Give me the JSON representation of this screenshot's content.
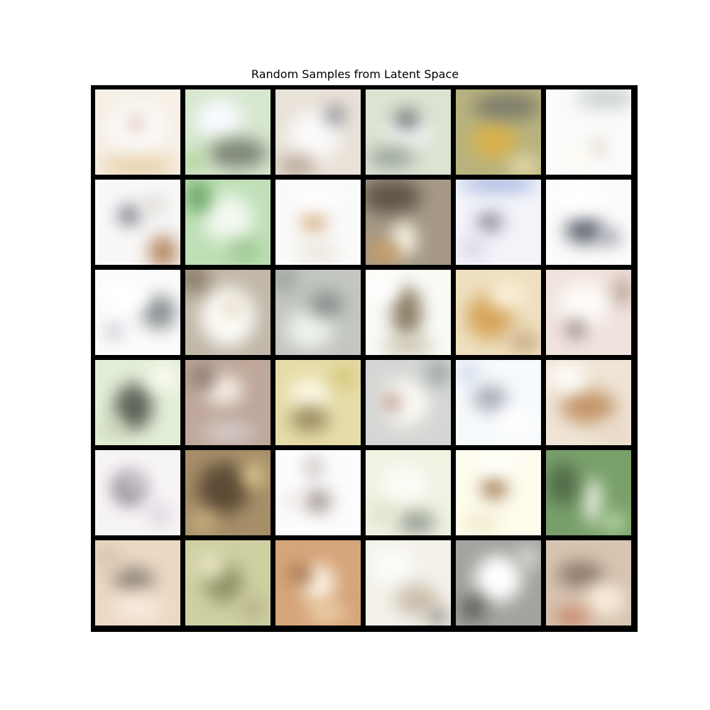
{
  "figure": {
    "title": "Random Samples from Latent Space"
  },
  "grid": {
    "rows": 6,
    "cols": 6,
    "tiles": [
      {
        "bg": "#f6f0e6",
        "blobs": [
          [
            "#fbfbfb",
            50,
            45,
            65,
            60
          ],
          [
            "#c98a62",
            48,
            40,
            10,
            18
          ],
          [
            "#e8cfa7",
            50,
            90,
            90,
            22
          ]
        ]
      },
      {
        "bg": "#d7e7cf",
        "blobs": [
          [
            "#f8fbff",
            40,
            35,
            55,
            45
          ],
          [
            "#7e8676",
            62,
            75,
            70,
            35
          ],
          [
            "#a9d38f",
            10,
            85,
            25,
            25
          ]
        ]
      },
      {
        "bg": "#e9e2d8",
        "blobs": [
          [
            "#fafafa",
            45,
            55,
            60,
            60
          ],
          [
            "#7c7f85",
            70,
            30,
            22,
            22
          ],
          [
            "#b9a899",
            25,
            90,
            45,
            25
          ]
        ]
      },
      {
        "bg": "#dce3d2",
        "blobs": [
          [
            "#f7f9fb",
            50,
            50,
            55,
            30
          ],
          [
            "#6e7171",
            48,
            35,
            30,
            24
          ],
          [
            "#9aa59b",
            30,
            80,
            55,
            25
          ]
        ]
      },
      {
        "bg": "#b8b37f",
        "blobs": [
          [
            "#d8b14e",
            45,
            60,
            55,
            45
          ],
          [
            "#7c7b6a",
            60,
            20,
            80,
            30
          ],
          [
            "#e2d9a8",
            80,
            90,
            40,
            25
          ]
        ]
      },
      {
        "bg": "#fbfbfb",
        "blobs": [
          [
            "#c9d2cd",
            70,
            10,
            70,
            25
          ],
          [
            "#b48c5c",
            62,
            68,
            8,
            16
          ],
          [
            "#fffde9",
            35,
            80,
            25,
            18
          ]
        ]
      },
      {
        "bg": "#f8f8f8",
        "blobs": [
          [
            "#6b6e7a",
            40,
            42,
            25,
            22
          ],
          [
            "#b68c67",
            80,
            85,
            35,
            40
          ],
          [
            "#d8d2cb",
            70,
            30,
            25,
            20
          ]
        ]
      },
      {
        "bg": "#bfe0b7",
        "blobs": [
          [
            "#f2f8ef",
            50,
            45,
            60,
            55
          ],
          [
            "#6ca866",
            15,
            20,
            30,
            40
          ],
          [
            "#9cc592",
            70,
            85,
            40,
            25
          ]
        ]
      },
      {
        "bg": "#fafafa",
        "blobs": [
          [
            "#d8b186",
            45,
            50,
            30,
            25
          ],
          [
            "#fefefe",
            50,
            20,
            60,
            25
          ],
          [
            "#eae4d8",
            50,
            85,
            50,
            20
          ]
        ]
      },
      {
        "bg": "#a59986",
        "blobs": [
          [
            "#5f5549",
            30,
            20,
            70,
            40
          ],
          [
            "#fdf8e9",
            45,
            70,
            30,
            40
          ],
          [
            "#c99d64",
            20,
            85,
            40,
            25
          ]
        ]
      },
      {
        "bg": "#f3f4fa",
        "blobs": [
          [
            "#94a8d8",
            50,
            5,
            90,
            15
          ],
          [
            "#7a7784",
            40,
            50,
            30,
            20
          ],
          [
            "#d6d6e4",
            20,
            80,
            30,
            25
          ]
        ]
      },
      {
        "bg": "#fbfbfb",
        "blobs": [
          [
            "#5f6370",
            45,
            60,
            45,
            30
          ],
          [
            "#8e919a",
            75,
            68,
            25,
            18
          ],
          [
            "#ffffff",
            40,
            20,
            60,
            30
          ]
        ]
      },
      {
        "bg": "#fbfbfb",
        "blobs": [
          [
            "#8a8f91",
            75,
            50,
            40,
            40
          ],
          [
            "#9aa1b0",
            22,
            72,
            18,
            12
          ],
          [
            "#ffffff",
            35,
            30,
            55,
            35
          ]
        ]
      },
      {
        "bg": "#c2b8a9",
        "blobs": [
          [
            "#fbfbf6",
            50,
            55,
            65,
            70
          ],
          [
            "#8a7c67",
            10,
            10,
            35,
            35
          ],
          [
            "#c9a981",
            55,
            45,
            20,
            10
          ]
        ]
      },
      {
        "bg": "#c4c7c1",
        "blobs": [
          [
            "#eef1ec",
            40,
            70,
            55,
            45
          ],
          [
            "#8b8f8c",
            60,
            40,
            40,
            30
          ],
          [
            "#a3a8a3",
            10,
            10,
            35,
            35
          ]
        ]
      },
      {
        "bg": "#fafaf6",
        "blobs": [
          [
            "#8b7d63",
            48,
            50,
            35,
            60
          ],
          [
            "#c9c2ad",
            50,
            90,
            60,
            20
          ],
          [
            "#ffffff",
            20,
            20,
            35,
            35
          ]
        ]
      },
      {
        "bg": "#eee0bf",
        "blobs": [
          [
            "#d6a65e",
            40,
            55,
            55,
            55
          ],
          [
            "#fbf2dc",
            60,
            30,
            45,
            30
          ],
          [
            "#c8a882",
            80,
            85,
            35,
            25
          ]
        ]
      },
      {
        "bg": "#f0e3dd",
        "blobs": [
          [
            "#fdfbf8",
            45,
            40,
            60,
            50
          ],
          [
            "#7e6a62",
            35,
            70,
            20,
            20
          ],
          [
            "#b49e90",
            90,
            25,
            20,
            35
          ]
        ]
      },
      {
        "bg": "#e3eed8",
        "blobs": [
          [
            "#5f6459",
            45,
            55,
            45,
            55
          ],
          [
            "#fbfbf2",
            80,
            20,
            35,
            30
          ],
          [
            "#c9d3b3",
            20,
            80,
            25,
            25
          ]
        ]
      },
      {
        "bg": "#bfa89b",
        "blobs": [
          [
            "#f6efe6",
            45,
            35,
            45,
            35
          ],
          [
            "#8d7b73",
            20,
            20,
            30,
            30
          ],
          [
            "#d4cbc8",
            50,
            85,
            60,
            25
          ]
        ]
      },
      {
        "bg": "#e6dda9",
        "blobs": [
          [
            "#fbf7e3",
            40,
            40,
            50,
            35
          ],
          [
            "#9c8c63",
            40,
            70,
            45,
            30
          ],
          [
            "#d8c77c",
            80,
            20,
            30,
            30
          ]
        ]
      },
      {
        "bg": "#d4d7d4",
        "blobs": [
          [
            "#fbf9f4",
            45,
            50,
            60,
            55
          ],
          [
            "#a27a6b",
            30,
            50,
            20,
            20
          ],
          [
            "#9ea4a7",
            85,
            15,
            30,
            30
          ]
        ]
      },
      {
        "bg": "#f7fafc",
        "blobs": [
          [
            "#a7a8b6",
            40,
            45,
            40,
            30
          ],
          [
            "#cfd8e8",
            15,
            15,
            25,
            25
          ],
          [
            "#ffffff",
            70,
            75,
            40,
            30
          ]
        ]
      },
      {
        "bg": "#efe4d5",
        "blobs": [
          [
            "#c4976b",
            50,
            55,
            65,
            40
          ],
          [
            "#fdfbf8",
            25,
            20,
            45,
            35
          ],
          [
            "#e7d6c1",
            80,
            85,
            35,
            25
          ]
        ]
      },
      {
        "bg": "#f7f4f6",
        "blobs": [
          [
            "#8e8592",
            40,
            45,
            40,
            40
          ],
          [
            "#ffffff",
            45,
            40,
            20,
            15
          ],
          [
            "#d6d1d8",
            75,
            75,
            25,
            25
          ]
        ]
      },
      {
        "bg": "#a68e69",
        "blobs": [
          [
            "#5c4b35",
            45,
            45,
            60,
            60
          ],
          [
            "#e0cd92",
            80,
            30,
            25,
            30
          ],
          [
            "#c7b07f",
            20,
            85,
            35,
            25
          ]
        ]
      },
      {
        "bg": "#fcfcfc",
        "blobs": [
          [
            "#b0a7a2",
            45,
            20,
            15,
            25
          ],
          [
            "#9b8d86",
            50,
            60,
            30,
            25
          ],
          [
            "#e6e0db",
            20,
            60,
            15,
            20
          ]
        ]
      },
      {
        "bg": "#eff3e2",
        "blobs": [
          [
            "#fcfcf7",
            45,
            40,
            55,
            45
          ],
          [
            "#93988f",
            60,
            85,
            45,
            25
          ],
          [
            "#d8e0c5",
            20,
            75,
            25,
            25
          ]
        ]
      },
      {
        "bg": "#fefcec",
        "blobs": [
          [
            "#a17a56",
            45,
            45,
            30,
            25
          ],
          [
            "#ffffff",
            50,
            15,
            60,
            20
          ],
          [
            "#efe6c6",
            30,
            85,
            40,
            20
          ]
        ]
      },
      {
        "bg": "#79a06b",
        "blobs": [
          [
            "#f1f4ea",
            55,
            60,
            20,
            55
          ],
          [
            "#4f6b47",
            20,
            40,
            35,
            50
          ],
          [
            "#b7d6a3",
            80,
            85,
            30,
            25
          ]
        ]
      },
      {
        "bg": "#ecd9c4",
        "blobs": [
          [
            "#8b8379",
            45,
            45,
            50,
            25
          ],
          [
            "#f8ece0",
            50,
            80,
            60,
            25
          ],
          [
            "#d8c3ad",
            15,
            20,
            30,
            30
          ]
        ]
      },
      {
        "bg": "#cfd0a2",
        "blobs": [
          [
            "#8f9265",
            45,
            50,
            45,
            45
          ],
          [
            "#e8e6c4",
            30,
            30,
            35,
            30
          ],
          [
            "#b7b68c",
            80,
            80,
            30,
            30
          ]
        ]
      },
      {
        "bg": "#d6a57a",
        "blobs": [
          [
            "#fbf3e4",
            50,
            50,
            40,
            45
          ],
          [
            "#9e6a45",
            30,
            40,
            25,
            25
          ],
          [
            "#f0d8b2",
            60,
            85,
            45,
            20
          ]
        ]
      },
      {
        "bg": "#f3f1ea",
        "blobs": [
          [
            "#fbfbf7",
            30,
            30,
            50,
            45
          ],
          [
            "#c9bca8",
            60,
            70,
            50,
            35
          ],
          [
            "#8f8a80",
            85,
            90,
            25,
            20
          ]
        ]
      },
      {
        "bg": "#a3a49f",
        "blobs": [
          [
            "#ffffff",
            50,
            45,
            55,
            55
          ],
          [
            "#5e5f5a",
            20,
            80,
            30,
            30
          ],
          [
            "#d9d9d4",
            85,
            20,
            25,
            30
          ]
        ]
      },
      {
        "bg": "#d7c4b1",
        "blobs": [
          [
            "#8e7c6c",
            40,
            40,
            55,
            30
          ],
          [
            "#fbeede",
            70,
            70,
            45,
            35
          ],
          [
            "#c98060",
            30,
            90,
            40,
            20
          ]
        ]
      }
    ]
  }
}
